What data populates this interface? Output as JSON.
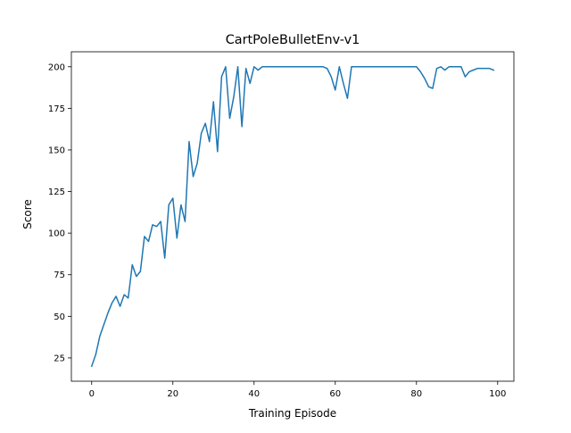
{
  "chart_data": {
    "type": "line",
    "title": "CartPoleBulletEnv-v1",
    "xlabel": "Training Episode",
    "ylabel": "Score",
    "xlim": [
      -5,
      104
    ],
    "ylim": [
      11,
      209
    ],
    "xticks": [
      0,
      20,
      40,
      60,
      80,
      100
    ],
    "yticks": [
      25,
      50,
      75,
      100,
      125,
      150,
      175,
      200
    ],
    "grid": false,
    "series": [
      {
        "color": "#1f77b4",
        "x": [
          0,
          1,
          2,
          3,
          4,
          5,
          6,
          7,
          8,
          9,
          10,
          11,
          12,
          13,
          14,
          15,
          16,
          17,
          18,
          19,
          20,
          21,
          22,
          23,
          24,
          25,
          26,
          27,
          28,
          29,
          30,
          31,
          32,
          33,
          34,
          35,
          36,
          37,
          38,
          39,
          40,
          41,
          42,
          43,
          44,
          45,
          46,
          47,
          48,
          49,
          50,
          51,
          52,
          53,
          54,
          55,
          56,
          57,
          58,
          59,
          60,
          61,
          62,
          63,
          64,
          65,
          66,
          67,
          68,
          69,
          70,
          71,
          72,
          73,
          74,
          75,
          76,
          77,
          78,
          79,
          80,
          81,
          82,
          83,
          84,
          85,
          86,
          87,
          88,
          89,
          90,
          91,
          92,
          93,
          94,
          95,
          96,
          97,
          98,
          99
        ],
        "y": [
          20,
          27,
          38,
          45,
          52,
          58,
          62,
          56,
          63,
          61,
          81,
          74,
          77,
          98,
          95,
          105,
          104,
          107,
          85,
          117,
          121,
          97,
          117,
          107,
          155,
          134,
          142,
          160,
          166,
          155,
          179,
          149,
          194,
          200,
          169,
          182,
          200,
          164,
          199,
          190,
          200,
          198,
          200,
          200,
          200,
          200,
          200,
          200,
          200,
          200,
          200,
          200,
          200,
          200,
          200,
          200,
          200,
          200,
          199,
          194,
          186,
          200,
          190,
          181,
          200,
          200,
          200,
          200,
          200,
          200,
          200,
          200,
          200,
          200,
          200,
          200,
          200,
          200,
          200,
          200,
          200,
          197,
          193,
          188,
          187,
          199,
          200,
          198,
          200,
          200,
          200,
          200,
          194,
          197,
          198,
          199,
          199,
          199,
          199,
          198
        ]
      }
    ]
  }
}
